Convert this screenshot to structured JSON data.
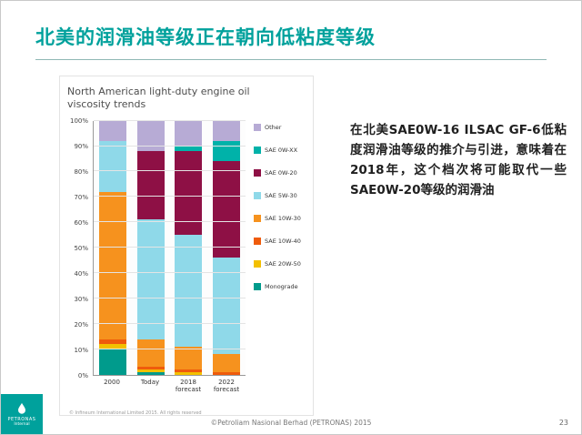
{
  "slide": {
    "title": "北美的润滑油等级正在朝向低粘度等级",
    "body_text": "在北美SAE0W-16 ILSAC GF-6低粘度润滑油等级的推介与引进，意味着在2018年，这个档次将可能取代一些SAE0W-20等级的润滑油",
    "footer_copyright": "©Petroliam Nasional Berhad (PETRONAS) 2015",
    "page_number": "23",
    "logo_text_line1": "PETRONAS",
    "logo_text_line2": "Internal",
    "accent_color": "#00a19c"
  },
  "chart_data": {
    "type": "bar",
    "stacked": true,
    "title": "North American light-duty engine oil viscosity trends",
    "footnote": "© Infineum International Limited 2015. All rights reserved",
    "categories": [
      "2000",
      "Today",
      "2018 forecast",
      "2022 forecast"
    ],
    "ylim": [
      0,
      100
    ],
    "y_tick_step": 10,
    "y_tick_suffix": "%",
    "grid": true,
    "legend_position": "right",
    "series": [
      {
        "name": "Other",
        "color": "#b7abd5",
        "values": [
          8,
          12,
          10,
          8
        ]
      },
      {
        "name": "SAE 0W-XX",
        "color": "#00b2a9",
        "values": [
          0,
          0,
          2,
          8
        ]
      },
      {
        "name": "SAE 0W-20",
        "color": "#8e1045",
        "values": [
          0,
          27,
          33,
          38
        ]
      },
      {
        "name": "SAE 5W-30",
        "color": "#8fd9e9",
        "values": [
          20,
          47,
          44,
          38
        ]
      },
      {
        "name": "SAE 10W-30",
        "color": "#f6921e",
        "values": [
          58,
          11,
          9,
          7
        ]
      },
      {
        "name": "SAE 10W-40",
        "color": "#ef5b0c",
        "values": [
          2,
          1,
          1,
          1
        ]
      },
      {
        "name": "SAE 20W-50",
        "color": "#f3c000",
        "values": [
          2,
          1,
          1,
          0
        ]
      },
      {
        "name": "Monograde",
        "color": "#009b8c",
        "values": [
          10,
          1,
          0,
          0
        ]
      }
    ]
  }
}
